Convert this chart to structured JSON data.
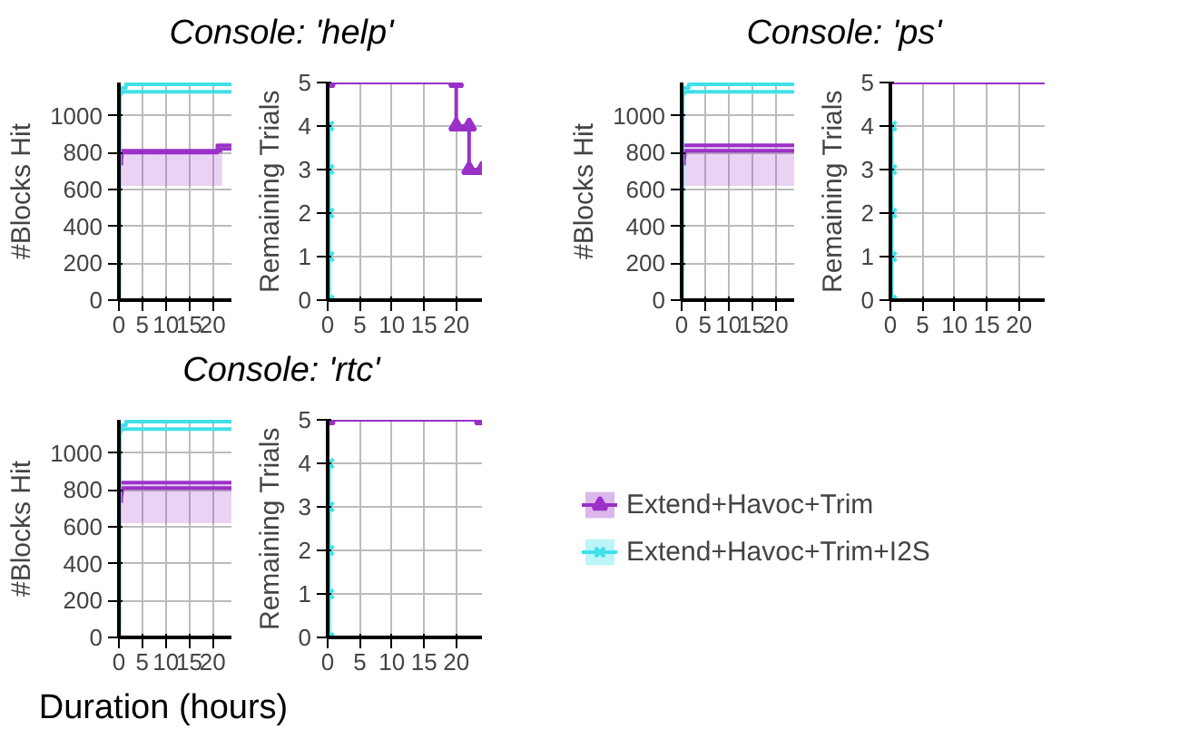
{
  "chart_data": [
    {
      "type": "line",
      "title": "Console: 'help'",
      "ylabel": "#Blocks Hit",
      "xlim": [
        0,
        24
      ],
      "xticks": [
        0,
        5,
        10,
        15,
        20
      ],
      "ylim": [
        0,
        1180
      ],
      "yticks": [
        0,
        200,
        400,
        600,
        800,
        1000
      ],
      "grid": true,
      "series": [
        {
          "color": "#9b30c8",
          "x": [
            0,
            22
          ],
          "values": [
            810,
            810
          ],
          "lower": [
            620,
            620
          ],
          "upper": [
            810,
            810
          ]
        },
        {
          "color": "#9b30c8",
          "x": [
            0.5,
            0.5,
            0.7,
            21,
            21,
            24
          ],
          "values": [
            730,
            760,
            800,
            800,
            840,
            840
          ]
        },
        {
          "color": "#9b30c8",
          "x": [
            21,
            24
          ],
          "values": [
            820,
            820
          ]
        },
        {
          "color": "#40e0e8",
          "x": [
            0.1,
            0.2,
            0.4,
            1,
            1.5,
            24
          ],
          "values": [
            0,
            1100,
            1120,
            1130,
            1130,
            1130
          ]
        },
        {
          "color": "#40e0e8",
          "x": [
            0.2,
            0.4,
            1.5,
            1.5,
            24
          ],
          "values": [
            1100,
            1150,
            1150,
            1170,
            1170
          ]
        }
      ]
    },
    {
      "type": "line",
      "ylabel": "Remaining Trials",
      "xlim": [
        0,
        24
      ],
      "xticks": [
        0,
        5,
        10,
        15,
        20
      ],
      "ylim": [
        0,
        5
      ],
      "yticks": [
        0,
        1,
        2,
        3,
        4,
        5
      ],
      "grid": true,
      "series": [
        {
          "color": "#9b30c8",
          "marker": "triangle",
          "x": [
            0,
            20,
            20,
            22,
            22,
            24
          ],
          "values": [
            5,
            5,
            4,
            4,
            3,
            3
          ]
        },
        {
          "color": "#40e0e8",
          "marker": "cross",
          "x": [
            0.2,
            0.2,
            0.2,
            0.2,
            0.2
          ],
          "values": [
            4,
            3,
            2,
            1,
            0
          ]
        }
      ]
    },
    {
      "type": "line",
      "title": "Console: 'ps'",
      "ylabel": "#Blocks Hit",
      "xlim": [
        0,
        24
      ],
      "xticks": [
        0,
        5,
        10,
        15,
        20
      ],
      "ylim": [
        0,
        1180
      ],
      "yticks": [
        0,
        200,
        400,
        600,
        800,
        1000
      ],
      "grid": true,
      "series": [
        {
          "color": "#9b30c8",
          "x": [
            0,
            24
          ],
          "values": [
            840,
            840
          ],
          "lower": [
            620,
            620
          ],
          "upper": [
            840,
            840
          ]
        },
        {
          "color": "#9b30c8",
          "x": [
            0.5,
            0.5,
            0.8,
            24
          ],
          "values": [
            730,
            760,
            810,
            810
          ]
        },
        {
          "color": "#40e0e8",
          "x": [
            0.1,
            0.2,
            0.4,
            1,
            1.5,
            24
          ],
          "values": [
            0,
            1100,
            1120,
            1130,
            1130,
            1130
          ]
        },
        {
          "color": "#40e0e8",
          "x": [
            0.2,
            0.4,
            1.5,
            1.5,
            24
          ],
          "values": [
            1100,
            1150,
            1150,
            1170,
            1170
          ]
        }
      ]
    },
    {
      "type": "line",
      "ylabel": "Remaining Trials",
      "xlim": [
        0,
        24
      ],
      "xticks": [
        0,
        5,
        10,
        15,
        20
      ],
      "ylim": [
        0,
        5
      ],
      "yticks": [
        0,
        1,
        2,
        3,
        4,
        5
      ],
      "grid": true,
      "series": [
        {
          "color": "#9b30c8",
          "x": [
            0,
            24
          ],
          "values": [
            5,
            5
          ]
        },
        {
          "color": "#40e0e8",
          "marker": "cross",
          "x": [
            0.2,
            0.2,
            0.2,
            0.2,
            0.2
          ],
          "values": [
            4,
            3,
            2,
            1,
            0
          ]
        }
      ]
    },
    {
      "type": "line",
      "title": "Console: 'rtc'",
      "ylabel": "#Blocks Hit",
      "xlabel": "Duration (hours)",
      "xlim": [
        0,
        24
      ],
      "xticks": [
        0,
        5,
        10,
        15,
        20
      ],
      "ylim": [
        0,
        1180
      ],
      "yticks": [
        0,
        200,
        400,
        600,
        800,
        1000
      ],
      "grid": true,
      "series": [
        {
          "color": "#9b30c8",
          "x": [
            0,
            24
          ],
          "values": [
            840,
            840
          ],
          "lower": [
            620,
            620
          ],
          "upper": [
            840,
            840
          ]
        },
        {
          "color": "#9b30c8",
          "x": [
            0.5,
            0.5,
            0.8,
            24
          ],
          "values": [
            730,
            760,
            810,
            810
          ]
        },
        {
          "color": "#40e0e8",
          "x": [
            0.1,
            0.2,
            0.4,
            1,
            1.5,
            24
          ],
          "values": [
            0,
            1100,
            1120,
            1130,
            1130,
            1130
          ]
        },
        {
          "color": "#40e0e8",
          "x": [
            0.2,
            0.4,
            1.5,
            1.5,
            24
          ],
          "values": [
            1100,
            1150,
            1150,
            1170,
            1170
          ]
        }
      ]
    },
    {
      "type": "line",
      "ylabel": "Remaining Trials",
      "xlim": [
        0,
        24
      ],
      "xticks": [
        0,
        5,
        10,
        15,
        20
      ],
      "ylim": [
        0,
        5
      ],
      "yticks": [
        0,
        1,
        2,
        3,
        4,
        5
      ],
      "grid": true,
      "legend": "right",
      "series": [
        {
          "name": "Extend+Havoc+Trim",
          "color": "#9b30c8",
          "marker": "triangle",
          "x": [
            0,
            24
          ],
          "values": [
            5,
            5
          ]
        },
        {
          "name": "Extend+Havoc+Trim+I2S",
          "color": "#40e0e8",
          "marker": "cross",
          "x": [
            0.2,
            0.2,
            0.2,
            0.2,
            0.2
          ],
          "values": [
            4,
            3,
            2,
            1,
            0
          ]
        }
      ]
    }
  ]
}
